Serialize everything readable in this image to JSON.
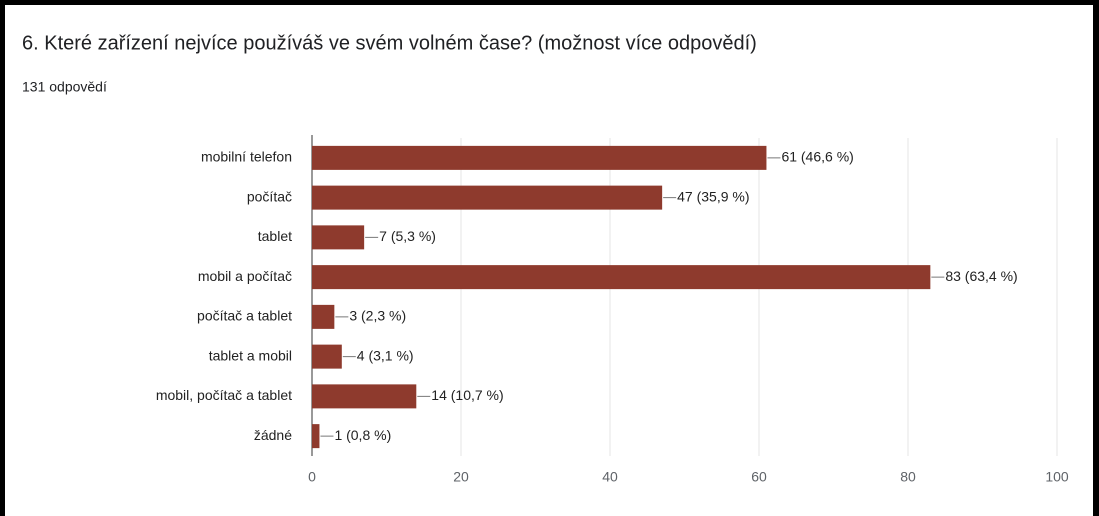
{
  "chart_data": {
    "type": "bar",
    "orientation": "horizontal",
    "title": "6. Které zařízení nejvíce používáš ve svém volném čase? (možnost více odpovědí)",
    "subtitle": "131 odpovědí",
    "categories": [
      "mobilní telefon",
      "počítač",
      "tablet",
      "mobil a počítač",
      "počítač a tablet",
      "tablet a mobil",
      "mobil, počítač a tablet",
      "žádné"
    ],
    "values": [
      61,
      47,
      7,
      83,
      3,
      4,
      14,
      1
    ],
    "value_labels": [
      "61 (46,6 %)",
      "47 (35,9 %)",
      "7 (5,3 %)",
      "83 (63,4 %)",
      "3 (2,3 %)",
      "4 (3,1 %)",
      "14 (10,7 %)",
      "1 (0,8 %)"
    ],
    "color": "#8e3a2d",
    "xlim": [
      0,
      100
    ],
    "xticks": [
      0,
      20,
      40,
      60,
      80,
      100
    ],
    "grid": true
  }
}
